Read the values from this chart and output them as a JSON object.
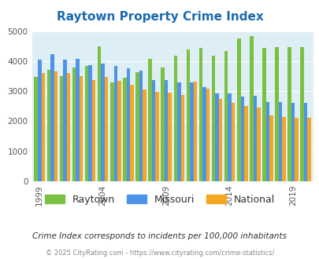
{
  "title": "Raytown Property Crime Index",
  "subtitle": "Crime Index corresponds to incidents per 100,000 inhabitants",
  "footer": "© 2025 CityRating.com - https://www.cityrating.com/crime-statistics/",
  "years": [
    1999,
    2000,
    2001,
    2002,
    2003,
    2004,
    2005,
    2006,
    2007,
    2008,
    2009,
    2010,
    2011,
    2012,
    2013,
    2014,
    2015,
    2016,
    2017,
    2018,
    2019,
    2020
  ],
  "raytown": [
    3480,
    3720,
    3500,
    3780,
    3840,
    4500,
    3290,
    3460,
    3620,
    4070,
    3800,
    4180,
    4400,
    4430,
    4190,
    4340,
    4760,
    4820,
    4430,
    4460,
    4460,
    4460
  ],
  "missouri": [
    4060,
    4240,
    4060,
    4080,
    3870,
    3920,
    3840,
    3750,
    3690,
    3380,
    3360,
    3290,
    3290,
    3140,
    2930,
    2920,
    2820,
    2850,
    2650,
    2650,
    2620,
    2620
  ],
  "national": [
    3600,
    3660,
    3600,
    3500,
    3360,
    3470,
    3340,
    3210,
    3050,
    2990,
    2940,
    2870,
    3330,
    3090,
    2740,
    2600,
    2500,
    2450,
    2200,
    2140,
    2120,
    2120
  ],
  "raytown_color": "#7bc043",
  "missouri_color": "#4d94e8",
  "national_color": "#f5a623",
  "bg_color": "#ddeef5",
  "title_color": "#1a6ab0",
  "ylim": [
    0,
    5000
  ],
  "yticks": [
    0,
    1000,
    2000,
    3000,
    4000,
    5000
  ],
  "tick_years": [
    1999,
    2004,
    2009,
    2014,
    2019
  ],
  "bar_width": 0.28
}
